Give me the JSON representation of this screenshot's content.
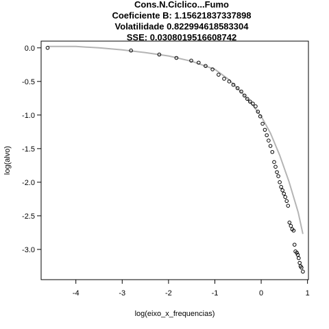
{
  "chart_data": {
    "type": "scatter",
    "title_lines": [
      "Cons.N.Ciclico...Fumo",
      "Coeficiente B:  1.15621837337898",
      "Volatilidade 0.822994618583304",
      "SSE: 0.0308019516608742"
    ],
    "xlabel": "log(eixo_x_frequencias)",
    "ylabel": "log(alvo)",
    "xlim": [
      -4.75,
      1.02
    ],
    "ylim": [
      -3.45,
      0.1
    ],
    "x_ticks": [
      -4,
      -3,
      -2,
      -1,
      0,
      1
    ],
    "y_ticks": [
      0.0,
      -0.5,
      -1.0,
      -1.5,
      -2.0,
      -2.5,
      -3.0
    ],
    "x_tick_labels": [
      "-4",
      "-3",
      "-2",
      "-1",
      "0",
      "1"
    ],
    "y_tick_labels": [
      "0.0",
      "-0.5",
      "-1.0",
      "-1.5",
      "-2.0",
      "-2.5",
      "-3.0"
    ],
    "grid": false,
    "colors": {
      "points": "#000000",
      "fit_line": "#b4b4b4"
    },
    "series": [
      {
        "kind": "points",
        "x": [
          -4.61,
          -2.81,
          -2.2,
          -1.83,
          -1.51,
          -1.35,
          -1.2,
          -1.05,
          -0.92,
          -0.8,
          -0.69,
          -0.6,
          -0.51,
          -0.43,
          -0.36,
          -0.3,
          -0.24,
          -0.18,
          -0.12,
          -0.07,
          -0.02,
          0.03,
          0.08,
          0.12,
          0.16,
          0.2,
          0.24,
          0.28,
          0.31,
          0.34,
          0.37,
          0.4,
          0.43,
          0.46,
          0.49,
          0.52,
          0.55,
          0.58,
          0.61,
          0.64,
          0.67,
          0.7,
          0.72,
          0.74,
          0.77,
          0.79,
          0.81,
          0.83,
          0.85,
          0.87,
          0.9
        ],
        "y": [
          0.0,
          -0.04,
          -0.1,
          -0.15,
          -0.19,
          -0.22,
          -0.27,
          -0.32,
          -0.4,
          -0.46,
          -0.5,
          -0.55,
          -0.6,
          -0.65,
          -0.71,
          -0.76,
          -0.8,
          -0.83,
          -0.87,
          -0.95,
          -1.02,
          -1.13,
          -1.22,
          -1.3,
          -1.38,
          -1.46,
          -1.55,
          -1.7,
          -1.77,
          -1.85,
          -1.91,
          -2.0,
          -2.07,
          -2.12,
          -2.17,
          -2.22,
          -2.28,
          -2.35,
          -2.6,
          -2.65,
          -2.7,
          -2.72,
          -2.93,
          -3.03,
          -3.05,
          -3.08,
          -3.13,
          -3.2,
          -3.25,
          -3.27,
          -3.33
        ]
      },
      {
        "kind": "fit_line",
        "x": [
          -4.61,
          -4.0,
          -3.5,
          -3.0,
          -2.5,
          -2.0,
          -1.5,
          -1.0,
          -0.7,
          -0.4,
          -0.2,
          0.0,
          0.2,
          0.4,
          0.6,
          0.8,
          0.9
        ],
        "y": [
          0.02,
          0.02,
          0.0,
          -0.03,
          -0.07,
          -0.12,
          -0.2,
          -0.32,
          -0.47,
          -0.68,
          -0.84,
          -1.02,
          -1.27,
          -1.6,
          -1.99,
          -2.45,
          -2.77
        ]
      }
    ]
  }
}
